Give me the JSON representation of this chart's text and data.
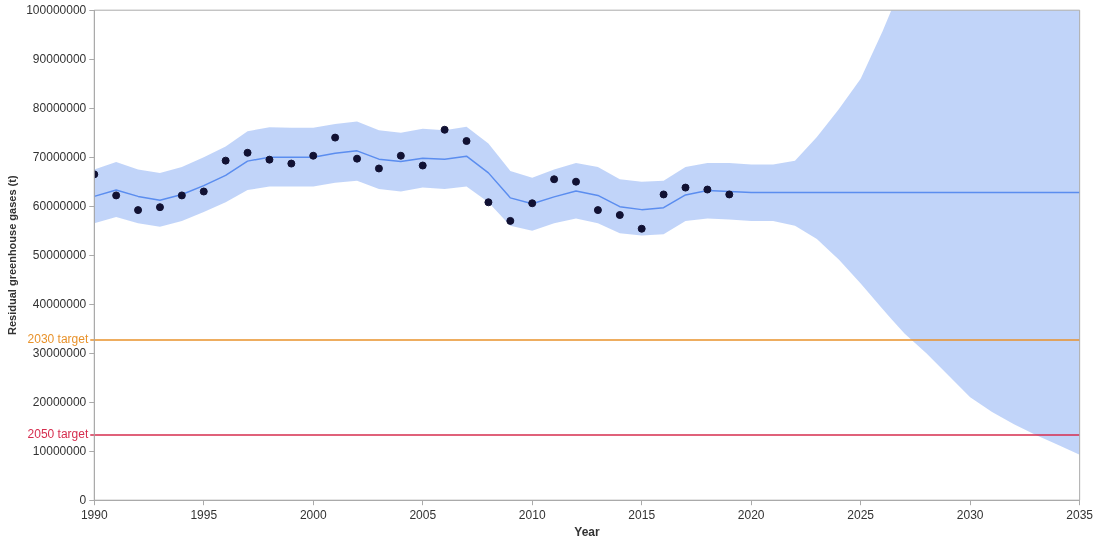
{
  "chart_data": {
    "type": "line",
    "xlabel": "Year",
    "ylabel": "Residual greenhouse gases (t)",
    "xlim": [
      1990,
      2035
    ],
    "xticks": [
      1990,
      1995,
      2000,
      2005,
      2010,
      2015,
      2020,
      2025,
      2030,
      2035
    ],
    "ylim": [
      0,
      100000000
    ],
    "yticks": [
      0,
      10000000,
      20000000,
      30000000,
      40000000,
      50000000,
      60000000,
      70000000,
      80000000,
      90000000,
      100000000
    ],
    "grid": false,
    "legend": false,
    "series": [
      {
        "color": "#5b8def",
        "marker": "none",
        "line_style": "solid",
        "x": [
          1990,
          1991,
          1992,
          1993,
          1994,
          1995,
          1996,
          1997,
          1998,
          1999,
          2000,
          2001,
          2002,
          2003,
          2004,
          2005,
          2006,
          2007,
          2008,
          2009,
          2010,
          2011,
          2012,
          2013,
          2014,
          2015,
          2016,
          2017,
          2018,
          2019,
          2020,
          2021,
          2022,
          2023,
          2024,
          2025,
          2026,
          2026.4,
          2027,
          2028,
          2029,
          2030,
          2031,
          2032,
          2033,
          2034,
          2035
        ],
        "values": [
          62000000,
          63300000,
          62000000,
          61200000,
          62400000,
          64200000,
          66300000,
          69200000,
          70000000,
          70000000,
          70000000,
          70800000,
          71300000,
          69600000,
          69100000,
          69800000,
          69600000,
          70200000,
          66800000,
          61700000,
          60500000,
          61900000,
          63100000,
          62200000,
          59900000,
          59300000,
          59700000,
          62300000,
          63200000,
          63000000,
          62800000,
          62800000,
          62800000,
          62800000,
          62800000,
          62800000,
          62800000,
          62800000,
          62800000,
          62800000,
          62800000,
          62800000,
          62800000,
          62800000,
          62800000,
          62800000,
          62800000
        ],
        "lower": [
          56500000,
          57800000,
          56500000,
          55800000,
          57000000,
          58800000,
          60800000,
          63300000,
          64000000,
          64000000,
          64000000,
          64800000,
          65200000,
          63500000,
          63000000,
          63800000,
          63500000,
          64000000,
          60800000,
          56000000,
          55000000,
          56500000,
          57500000,
          56500000,
          54500000,
          54000000,
          54300000,
          57000000,
          57500000,
          57300000,
          57000000,
          57000000,
          56000000,
          53300000,
          49100000,
          44200000,
          39000000,
          37000000,
          34000000,
          30000000,
          25500000,
          21000000,
          18000000,
          15500000,
          13300000,
          11300000,
          9300000
        ],
        "upper": [
          67500000,
          69000000,
          67500000,
          66800000,
          68000000,
          70000000,
          72200000,
          75300000,
          76100000,
          76000000,
          76000000,
          76800000,
          77300000,
          75500000,
          75000000,
          75800000,
          75500000,
          76200000,
          72800000,
          67200000,
          65800000,
          67500000,
          68800000,
          68000000,
          65500000,
          65000000,
          65200000,
          68000000,
          68800000,
          68800000,
          68500000,
          68500000,
          69300000,
          74100000,
          79800000,
          86000000,
          95700000,
          100000000,
          100000000,
          100000000,
          100000000,
          100000000,
          100000000,
          100000000,
          100000000,
          100000000,
          100000000
        ]
      },
      {
        "type": "scatter",
        "color": "#111133",
        "marker": "circle",
        "x": [
          1990,
          1991,
          1992,
          1993,
          1994,
          1995,
          1996,
          1997,
          1998,
          1999,
          2000,
          2001,
          2002,
          2003,
          2004,
          2005,
          2006,
          2007,
          2008,
          2009,
          2010,
          2011,
          2012,
          2013,
          2014,
          2015,
          2016,
          2017,
          2018,
          2019
        ],
        "values": [
          66500000,
          62200000,
          59200000,
          59800000,
          62200000,
          63000000,
          69300000,
          70900000,
          69500000,
          68700000,
          70300000,
          74000000,
          69700000,
          67700000,
          70300000,
          68300000,
          75600000,
          73300000,
          60800000,
          57000000,
          60600000,
          65500000,
          65000000,
          59200000,
          58200000,
          55400000,
          62400000,
          63800000,
          63400000,
          62400000
        ]
      }
    ],
    "ref_lines": [
      {
        "axis": "y",
        "value": 32700000,
        "label": "2030 target",
        "color": "#e8922b"
      },
      {
        "axis": "y",
        "value": 13300000,
        "label": "2050 target",
        "color": "#d62d4e"
      }
    ]
  }
}
